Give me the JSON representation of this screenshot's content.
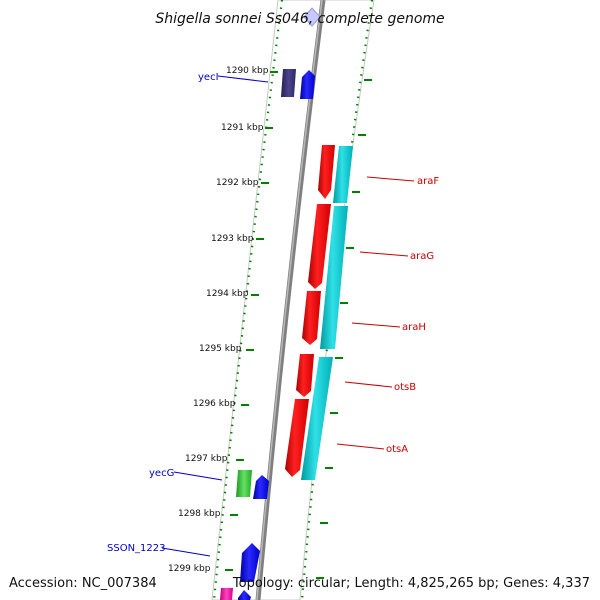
{
  "title": "Shigella sonnei Ss046, complete genome",
  "footer": {
    "accession": "Accession: NC_007384",
    "topology": "Topology: circular; Length: 4,825,265 bp; Genes: 4,337"
  },
  "kbp_labels": [
    "1290 kbp",
    "1291 kbp",
    "1292 kbp",
    "1293 kbp",
    "1294 kbp",
    "1295 kbp",
    "1296 kbp",
    "1297 kbp",
    "1298 kbp",
    "1299 kbp"
  ],
  "gene_labels": {
    "left": [
      "yecI",
      "yecG",
      "SSON_1223"
    ],
    "right": [
      "araF",
      "araG",
      "araH",
      "otsB",
      "otsA"
    ]
  },
  "colors": {
    "reverse_strand_label": "#0000cc",
    "forward_strand_label": "#cc0000",
    "tick_marks": "#008000",
    "backbone": "#888888"
  }
}
